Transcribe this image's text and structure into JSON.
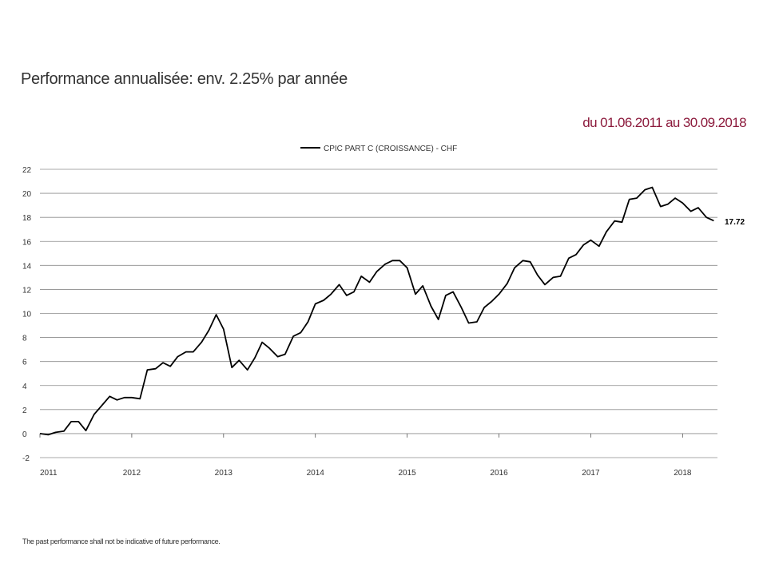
{
  "header": {
    "title": "Performance annualisée: env. 2.25% par année",
    "period": "du 01.06.2011 au 30.09.2018"
  },
  "footer": {
    "disclaimer": "The past performance shall not be indicative of future performance."
  },
  "colors": {
    "accent": "#8c1a3c",
    "series": "#000000",
    "grid": "#8c8c8c"
  },
  "chart_data": {
    "type": "line",
    "title": "",
    "xlabel": "",
    "ylabel": "",
    "xlim": [
      2011.0,
      2018.38
    ],
    "ylim": [
      -2,
      22
    ],
    "yticks": [
      "-2",
      "0",
      "2",
      "4",
      "6",
      "8",
      "10",
      "12",
      "14",
      "16",
      "18",
      "20",
      "22"
    ],
    "xticks": [
      "2011",
      "2012",
      "2013",
      "2014",
      "2015",
      "2016",
      "2017",
      "2018"
    ],
    "grid": "horizontal",
    "legend": "top-center",
    "end_label": "17.72",
    "series": [
      {
        "name": "CPIC PART C (CROISSANCE) - CHF",
        "x": [
          2011.0,
          2011.09,
          2011.17,
          2011.26,
          2011.34,
          2011.42,
          2011.5,
          2011.59,
          2011.67,
          2011.76,
          2011.84,
          2011.92,
          2012.0,
          2012.09,
          2012.17,
          2012.26,
          2012.34,
          2012.42,
          2012.5,
          2012.59,
          2012.67,
          2012.76,
          2012.84,
          2012.92,
          2013.0,
          2013.09,
          2013.17,
          2013.26,
          2013.34,
          2013.42,
          2013.5,
          2013.59,
          2013.67,
          2013.76,
          2013.84,
          2013.92,
          2014.0,
          2014.09,
          2014.17,
          2014.26,
          2014.34,
          2014.42,
          2014.5,
          2014.59,
          2014.67,
          2014.76,
          2014.84,
          2014.92,
          2015.0,
          2015.09,
          2015.17,
          2015.26,
          2015.34,
          2015.42,
          2015.5,
          2015.59,
          2015.67,
          2015.76,
          2015.84,
          2015.92,
          2016.0,
          2016.09,
          2016.17,
          2016.26,
          2016.34,
          2016.42,
          2016.5,
          2016.59,
          2016.67,
          2016.76,
          2016.84,
          2016.92,
          2017.0,
          2017.09,
          2017.17,
          2017.26,
          2017.34,
          2017.42,
          2017.5,
          2017.59,
          2017.67,
          2017.76,
          2017.84,
          2017.92,
          2018.0,
          2018.09,
          2018.17,
          2018.26,
          2018.34
        ],
        "values": [
          0.0,
          -0.1,
          0.1,
          0.2,
          1.0,
          1.0,
          0.25,
          1.6,
          2.3,
          3.1,
          2.8,
          3.0,
          3.0,
          2.9,
          5.3,
          5.4,
          5.9,
          5.6,
          6.4,
          6.8,
          6.8,
          7.6,
          8.6,
          9.9,
          8.7,
          5.5,
          6.1,
          5.3,
          6.3,
          7.6,
          7.1,
          6.4,
          6.6,
          8.1,
          8.4,
          9.3,
          10.8,
          11.1,
          11.6,
          12.4,
          11.5,
          11.8,
          13.1,
          12.6,
          13.5,
          14.1,
          14.4,
          14.4,
          13.8,
          11.6,
          12.3,
          10.6,
          9.5,
          11.5,
          11.8,
          10.5,
          9.2,
          9.3,
          10.5,
          11.0,
          11.6,
          12.5,
          13.8,
          14.4,
          14.3,
          13.2,
          12.4,
          13.0,
          13.1,
          14.6,
          14.9,
          15.7,
          16.1,
          15.6,
          16.8,
          17.7,
          17.6,
          19.5,
          19.6,
          20.3,
          20.5,
          18.9,
          19.1,
          19.6,
          19.2,
          18.5,
          18.8,
          18.0,
          17.72
        ]
      }
    ]
  }
}
